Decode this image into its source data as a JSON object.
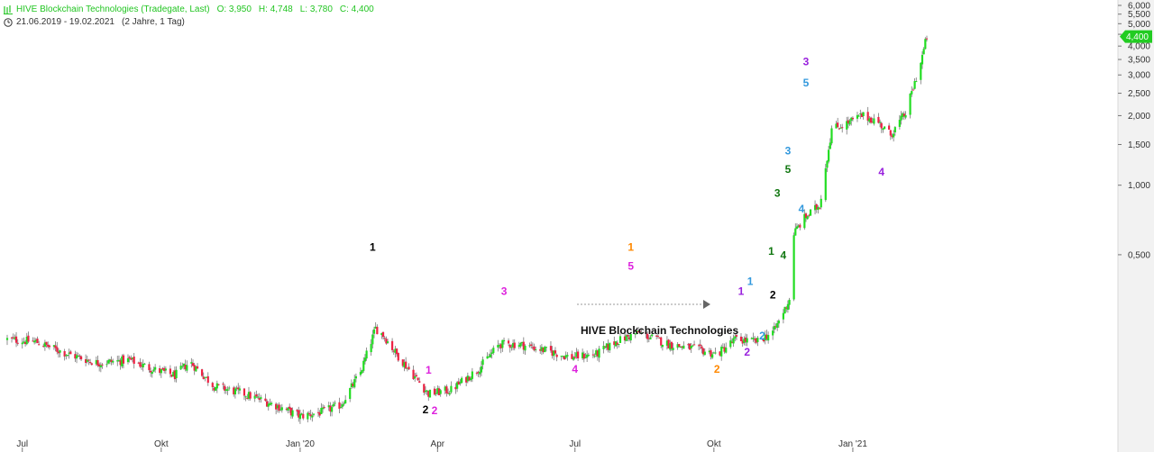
{
  "header": {
    "title": "HIVE Blockchain Technologies (Tradegate, Last)",
    "open": "O: 3,950",
    "high": "H: 4,748",
    "low": "L: 3,780",
    "close": "C: 4,400",
    "date_range": "21.06.2019 - 19.02.2021",
    "duration": "(2 Jahre, 1 Tag)"
  },
  "colors": {
    "up": "#22dd22",
    "down": "#ee2244",
    "price_badge": "#22cc22",
    "axis_text": "#333333"
  },
  "chart_data": {
    "type": "candlestick",
    "title": "HIVE Blockchain Technologies",
    "y_scale": "log",
    "ylim": [
      0.09,
      6.0
    ],
    "y_ticks": [
      {
        "v": 6.0,
        "label": "6,000"
      },
      {
        "v": 5.5,
        "label": "5,500"
      },
      {
        "v": 5.0,
        "label": "5,000"
      },
      {
        "v": 4.5,
        "label": "4,500"
      },
      {
        "v": 4.0,
        "label": "4,000"
      },
      {
        "v": 3.5,
        "label": "3,500"
      },
      {
        "v": 3.0,
        "label": "3,000"
      },
      {
        "v": 2.5,
        "label": "2,500"
      },
      {
        "v": 2.0,
        "label": "2,000"
      },
      {
        "v": 1.5,
        "label": "1,500"
      },
      {
        "v": 1.0,
        "label": "1,000"
      },
      {
        "v": 0.5,
        "label": "0,500"
      }
    ],
    "x_ticks": [
      {
        "date": "2019-07-01",
        "label": "Jul"
      },
      {
        "date": "2019-10-01",
        "label": "Okt"
      },
      {
        "date": "2020-01-01",
        "label": "Jan '20"
      },
      {
        "date": "2020-04-01",
        "label": "Apr"
      },
      {
        "date": "2020-07-01",
        "label": "Jul"
      },
      {
        "date": "2020-10-01",
        "label": "Okt"
      },
      {
        "date": "2021-01-01",
        "label": "Jan '21"
      }
    ],
    "last_price": {
      "value": 4.4,
      "label": "4,400"
    },
    "price_path": [
      {
        "date": "2019-06-21",
        "close": 0.215
      },
      {
        "date": "2019-07-10",
        "close": 0.21
      },
      {
        "date": "2019-08-01",
        "close": 0.185
      },
      {
        "date": "2019-08-20",
        "close": 0.17
      },
      {
        "date": "2019-09-10",
        "close": 0.175
      },
      {
        "date": "2019-09-25",
        "close": 0.16
      },
      {
        "date": "2019-10-10",
        "close": 0.15
      },
      {
        "date": "2019-10-20",
        "close": 0.172
      },
      {
        "date": "2019-11-05",
        "close": 0.135
      },
      {
        "date": "2019-11-25",
        "close": 0.125
      },
      {
        "date": "2019-12-15",
        "close": 0.112
      },
      {
        "date": "2020-01-01",
        "close": 0.1
      },
      {
        "date": "2020-01-15",
        "close": 0.104
      },
      {
        "date": "2020-01-28",
        "close": 0.112
      },
      {
        "date": "2020-02-10",
        "close": 0.155
      },
      {
        "date": "2020-02-20",
        "close": 0.24
      },
      {
        "date": "2020-02-25",
        "close": 0.225
      },
      {
        "date": "2020-03-05",
        "close": 0.185
      },
      {
        "date": "2020-03-20",
        "close": 0.14
      },
      {
        "date": "2020-03-26",
        "close": 0.125
      },
      {
        "date": "2020-04-10",
        "close": 0.13
      },
      {
        "date": "2020-04-28",
        "close": 0.16
      },
      {
        "date": "2020-05-12",
        "close": 0.205
      },
      {
        "date": "2020-05-25",
        "close": 0.205
      },
      {
        "date": "2020-06-15",
        "close": 0.19
      },
      {
        "date": "2020-06-28",
        "close": 0.18
      },
      {
        "date": "2020-07-15",
        "close": 0.185
      },
      {
        "date": "2020-07-28",
        "close": 0.21
      },
      {
        "date": "2020-08-12",
        "close": 0.23
      },
      {
        "date": "2020-09-01",
        "close": 0.205
      },
      {
        "date": "2020-09-20",
        "close": 0.195
      },
      {
        "date": "2020-10-03",
        "close": 0.185
      },
      {
        "date": "2020-10-15",
        "close": 0.215
      },
      {
        "date": "2020-10-30",
        "close": 0.21
      },
      {
        "date": "2020-11-10",
        "close": 0.235
      },
      {
        "date": "2020-11-20",
        "close": 0.32
      },
      {
        "date": "2020-11-23",
        "close": 0.62
      },
      {
        "date": "2020-11-30",
        "close": 0.72
      },
      {
        "date": "2020-12-10",
        "close": 0.82
      },
      {
        "date": "2020-12-18",
        "close": 1.75
      },
      {
        "date": "2020-12-28",
        "close": 1.85
      },
      {
        "date": "2021-01-07",
        "close": 2.0
      },
      {
        "date": "2021-01-17",
        "close": 1.9
      },
      {
        "date": "2021-01-26",
        "close": 1.65
      },
      {
        "date": "2021-02-05",
        "close": 2.05
      },
      {
        "date": "2021-02-15",
        "close": 3.4
      },
      {
        "date": "2021-02-19",
        "close": 4.4
      }
    ],
    "annotations": [
      {
        "text": "1",
        "date": "2020-02-18",
        "price": 0.52,
        "color": "#000000"
      },
      {
        "text": "2",
        "date": "2020-03-24",
        "price": 0.103,
        "color": "#000000"
      },
      {
        "text": "1",
        "date": "2020-03-26",
        "price": 0.153,
        "color": "#dd22dd"
      },
      {
        "text": "2",
        "date": "2020-03-30",
        "price": 0.102,
        "color": "#dd22dd"
      },
      {
        "text": "3",
        "date": "2020-05-15",
        "price": 0.335,
        "color": "#dd22dd"
      },
      {
        "text": "4",
        "date": "2020-07-01",
        "price": 0.154,
        "color": "#dd22dd"
      },
      {
        "text": "1",
        "date": "2020-08-07",
        "price": 0.52,
        "color": "#ff8800"
      },
      {
        "text": "5",
        "date": "2020-08-07",
        "price": 0.43,
        "color": "#dd22dd"
      },
      {
        "text": "2",
        "date": "2020-10-03",
        "price": 0.154,
        "color": "#ff8800"
      },
      {
        "text": "1",
        "date": "2020-10-19",
        "price": 0.335,
        "color": "#9922dd"
      },
      {
        "text": "2",
        "date": "2020-10-23",
        "price": 0.183,
        "color": "#9922dd"
      },
      {
        "text": "1",
        "date": "2020-10-25",
        "price": 0.37,
        "color": "#3399dd"
      },
      {
        "text": "2",
        "date": "2020-11-02",
        "price": 0.215,
        "color": "#3399dd"
      },
      {
        "text": "1",
        "date": "2020-11-08",
        "price": 0.5,
        "color": "#117711"
      },
      {
        "text": "2",
        "date": "2020-11-09",
        "price": 0.323,
        "color": "#000000"
      },
      {
        "text": "3",
        "date": "2020-11-12",
        "price": 0.89,
        "color": "#117711"
      },
      {
        "text": "4",
        "date": "2020-11-16",
        "price": 0.48,
        "color": "#117711"
      },
      {
        "text": "5",
        "date": "2020-11-19",
        "price": 1.13,
        "color": "#117711"
      },
      {
        "text": "3",
        "date": "2020-11-19",
        "price": 1.36,
        "color": "#3399dd"
      },
      {
        "text": "4",
        "date": "2020-11-28",
        "price": 0.76,
        "color": "#3399dd"
      },
      {
        "text": "3",
        "date": "2020-12-01",
        "price": 3.3,
        "color": "#9922dd"
      },
      {
        "text": "5",
        "date": "2020-12-01",
        "price": 2.68,
        "color": "#3399dd"
      },
      {
        "text": "4",
        "date": "2021-01-20",
        "price": 1.1,
        "color": "#9922dd"
      }
    ]
  }
}
